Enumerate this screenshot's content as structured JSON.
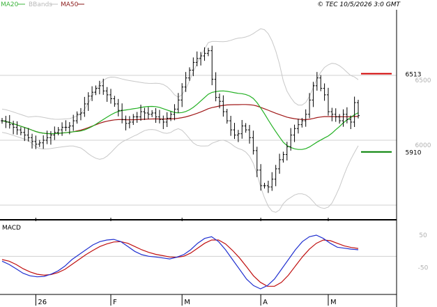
{
  "legend": {
    "items": [
      {
        "name": "MA20",
        "color": "#3cb43c"
      },
      {
        "name": "BBands",
        "color": "#c0c0c0"
      },
      {
        "name": "MA50",
        "color": "#8b1a1a"
      }
    ]
  },
  "copyright": "© TEC 10/5/2026 3:0 GMT",
  "colors": {
    "price": "#000000",
    "ma20": "#22b022",
    "ma50": "#a01818",
    "bands": "#c8c8c8",
    "resistance": "#d00000",
    "support": "#008000",
    "macd": "#2030d0",
    "signal": "#c01010",
    "grid": "#d0d0d0",
    "axis": "#000000"
  },
  "chart_data": [
    {
      "type": "ohlc",
      "title": "",
      "y_ticks": [
        "6500",
        "6000"
      ],
      "ylim": [
        5510,
        6970
      ],
      "levels": [
        {
          "name": "resistance",
          "value": 6513,
          "label": "6513",
          "color": "#d00000"
        },
        {
          "name": "support",
          "value": 5910,
          "label": "5910",
          "color": "#008000"
        }
      ],
      "x_ticks": [
        {
          "label": "26",
          "index": 9
        },
        {
          "label": "F",
          "index": 29
        },
        {
          "label": "M",
          "index": 48
        },
        {
          "label": "A",
          "index": 69
        },
        {
          "label": "M",
          "index": 87
        }
      ],
      "closes": [
        6150,
        6140,
        6120,
        6100,
        6080,
        6060,
        6040,
        6020,
        5990,
        5970,
        5980,
        6000,
        6020,
        6040,
        6060,
        6080,
        6100,
        6100,
        6110,
        6150,
        6200,
        6210,
        6280,
        6340,
        6370,
        6400,
        6420,
        6380,
        6350,
        6320,
        6280,
        6230,
        6160,
        6130,
        6140,
        6180,
        6180,
        6220,
        6210,
        6200,
        6210,
        6180,
        6160,
        6140,
        6170,
        6200,
        6240,
        6310,
        6410,
        6480,
        6540,
        6600,
        6630,
        6650,
        6670,
        6690,
        6470,
        6330,
        6300,
        6220,
        6150,
        6080,
        6040,
        6050,
        6110,
        6080,
        6020,
        5920,
        5770,
        5650,
        5650,
        5640,
        5700,
        5780,
        5850,
        5890,
        5950,
        6040,
        6090,
        6120,
        6150,
        6200,
        6310,
        6420,
        6480,
        6400,
        6350,
        6220,
        6200,
        6180,
        6150,
        6200,
        6160,
        6140,
        6290,
        6190
      ]
    },
    {
      "type": "line",
      "title": "MACD",
      "y_ticks": [
        "50",
        "-50"
      ],
      "ylim": [
        -100,
        80
      ],
      "series": [
        {
          "name": "MACD",
          "values": [
            -15,
            -25,
            -38,
            -52,
            -60,
            -63,
            -62,
            -55,
            -45,
            -30,
            -10,
            5,
            20,
            35,
            45,
            50,
            52,
            45,
            30,
            15,
            5,
            0,
            -2,
            -5,
            -8,
            -3,
            5,
            20,
            40,
            55,
            60,
            45,
            20,
            -10,
            -40,
            -70,
            -90,
            -100,
            -90,
            -70,
            -40,
            -10,
            20,
            45,
            60,
            65,
            55,
            40,
            28,
            25,
            22,
            20
          ]
        },
        {
          "name": "Signal",
          "values": [
            -10,
            -15,
            -25,
            -38,
            -48,
            -55,
            -58,
            -56,
            -50,
            -40,
            -25,
            -10,
            5,
            18,
            30,
            38,
            44,
            45,
            40,
            30,
            20,
            12,
            6,
            2,
            -2,
            -3,
            0,
            10,
            25,
            40,
            50,
            50,
            38,
            18,
            -5,
            -32,
            -60,
            -80,
            -92,
            -92,
            -80,
            -58,
            -30,
            -2,
            22,
            40,
            50,
            48,
            40,
            32,
            27,
            24
          ]
        }
      ]
    }
  ]
}
